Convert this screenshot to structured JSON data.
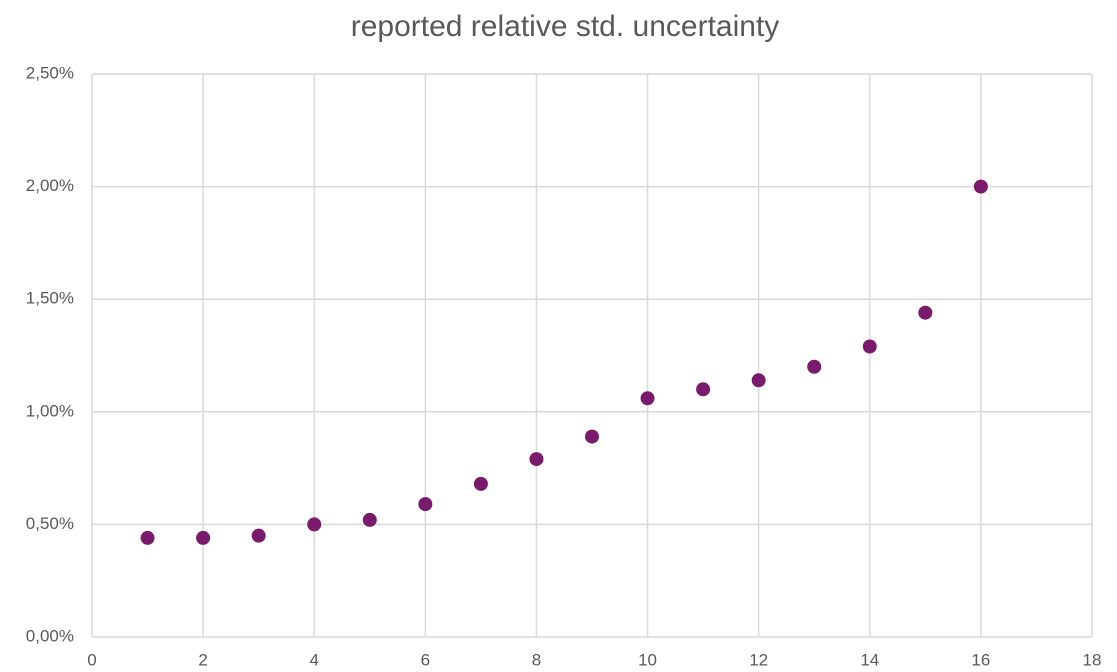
{
  "chart_data": {
    "type": "scatter",
    "title": "reported relative std. uncertainty",
    "x": [
      1,
      2,
      3,
      4,
      5,
      6,
      7,
      8,
      9,
      10,
      11,
      12,
      13,
      14,
      15,
      16
    ],
    "values": [
      0.44,
      0.44,
      0.45,
      0.5,
      0.52,
      0.59,
      0.68,
      0.79,
      0.89,
      1.06,
      1.1,
      1.14,
      1.2,
      1.29,
      1.44,
      2.0
    ],
    "color": "#7a1a6c",
    "xlim": [
      0,
      18
    ],
    "xticks": [
      0,
      2,
      4,
      6,
      8,
      10,
      12,
      14,
      16,
      18
    ],
    "ylim": [
      0,
      2.5
    ],
    "yticks": [
      {
        "value": 0,
        "label": "0,00%"
      },
      {
        "value": 0.5,
        "label": "0,50%"
      },
      {
        "value": 1,
        "label": "1,00%"
      },
      {
        "value": 1.5,
        "label": "1,50%"
      },
      {
        "value": 2,
        "label": "2,00%"
      },
      {
        "value": 2.5,
        "label": "2,50%"
      }
    ],
    "grid": true
  }
}
